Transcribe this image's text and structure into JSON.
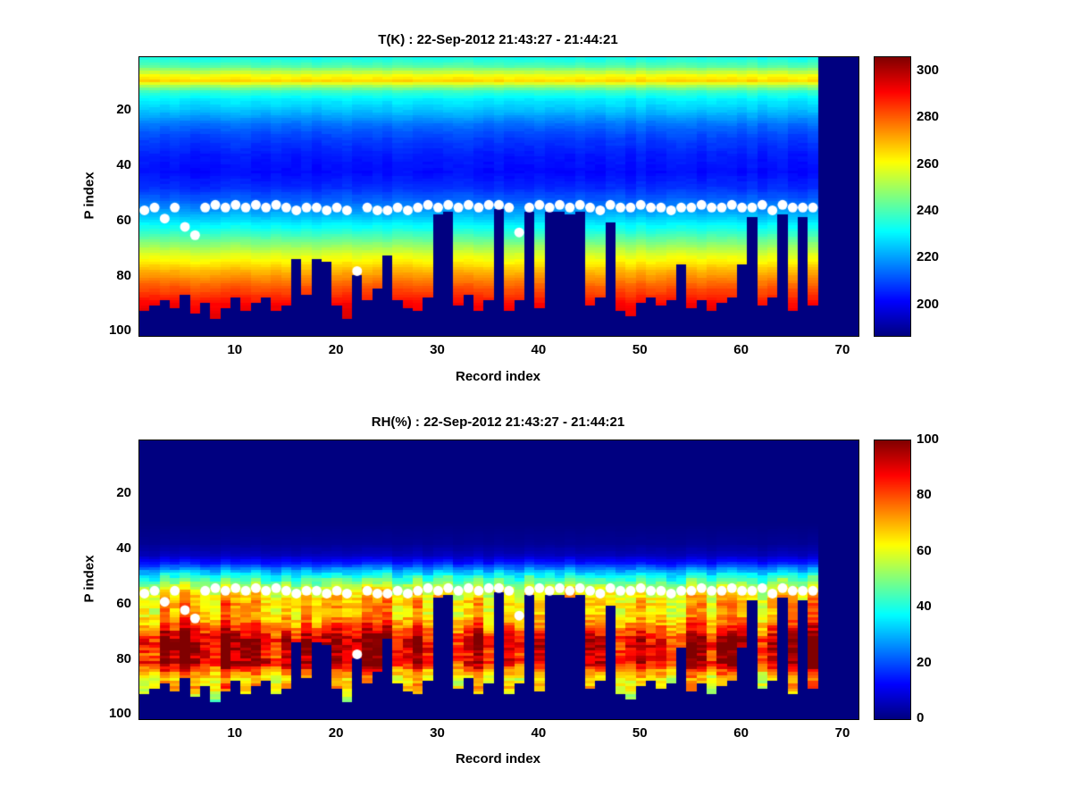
{
  "figure": {
    "background": "#ffffff",
    "marker_color": "#ffffff",
    "background_min_color_name": "dark-navy"
  },
  "chart_data": [
    {
      "type": "heatmap",
      "title": "T(K) : 22-Sep-2012 21:43:27 - 21:44:21",
      "xlabel": "Record index",
      "ylabel": "P index",
      "xlim": [
        0.5,
        71.5
      ],
      "ylim": [
        0.5,
        101.5
      ],
      "y_inverted": true,
      "xticks": [
        10,
        20,
        30,
        40,
        50,
        60,
        70
      ],
      "yticks": [
        20,
        40,
        60,
        80,
        100
      ],
      "colormap": "jet",
      "texture": "additive",
      "n_records": 71,
      "n_data_records": 67,
      "colorbar": {
        "min": 187,
        "max": 306,
        "ticks": [
          200,
          220,
          240,
          260,
          280,
          300
        ]
      },
      "value_profile": {
        "p": [
          1,
          4,
          7,
          9,
          11,
          13,
          16,
          20,
          25,
          30,
          36,
          42,
          48,
          54,
          60,
          66,
          72,
          78,
          84,
          90,
          96,
          101
        ],
        "value": [
          234,
          242,
          260,
          266,
          250,
          238,
          230,
          224,
          215,
          209,
          205,
          203,
          207,
          216,
          228,
          242,
          257,
          270,
          281,
          291,
          296,
          298
        ]
      },
      "surface_cutoff_p": [
        92,
        90,
        88,
        91,
        86,
        93,
        89,
        95,
        91,
        87,
        92,
        89,
        87,
        92,
        90,
        73,
        86,
        73,
        74,
        90,
        95,
        79,
        88,
        84,
        72,
        88,
        91,
        92,
        87,
        57,
        56,
        90,
        86,
        92,
        88,
        55,
        92,
        88,
        56,
        91,
        56,
        56,
        57,
        56,
        90,
        87,
        60,
        92,
        94,
        89,
        87,
        90,
        88,
        75,
        91,
        88,
        92,
        89,
        87,
        75,
        58,
        90,
        87,
        57,
        92,
        58,
        90,
        0,
        0,
        0,
        0
      ],
      "markers": {
        "color": "#ffffff",
        "p": [
          56,
          55,
          59,
          55,
          62,
          65,
          55,
          54,
          55,
          54,
          55,
          54,
          55,
          54,
          55,
          56,
          55,
          55,
          56,
          55,
          56,
          78,
          55,
          56,
          56,
          55,
          56,
          55,
          54,
          55,
          54,
          55,
          54,
          55,
          54,
          54,
          55,
          64,
          55,
          54,
          55,
          54,
          55,
          54,
          55,
          56,
          54,
          55,
          55,
          54,
          55,
          55,
          56,
          55,
          55,
          54,
          55,
          55,
          54,
          55,
          55,
          54,
          56,
          54,
          55,
          55,
          55
        ]
      }
    },
    {
      "type": "heatmap",
      "title": "RH(%) : 22-Sep-2012 21:43:27 - 21:44:21",
      "xlabel": "Record index",
      "ylabel": "P index",
      "xlim": [
        0.5,
        71.5
      ],
      "ylim": [
        0.5,
        101.5
      ],
      "y_inverted": true,
      "xticks": [
        10,
        20,
        30,
        40,
        50,
        60,
        70
      ],
      "yticks": [
        20,
        40,
        60,
        80,
        100
      ],
      "colormap": "jet",
      "texture": "multiplicative",
      "n_records": 71,
      "n_data_records": 67,
      "colorbar": {
        "min": 0,
        "max": 100,
        "ticks": [
          0,
          20,
          40,
          60,
          80,
          100
        ]
      },
      "value_profile": {
        "p": [
          1,
          30,
          38,
          42,
          45,
          48,
          51,
          54,
          57,
          60,
          63,
          66,
          69,
          72,
          75,
          78,
          81,
          84,
          87,
          90,
          93,
          97,
          101
        ],
        "value": [
          0,
          0,
          2,
          6,
          15,
          30,
          45,
          58,
          65,
          70,
          68,
          74,
          82,
          92,
          96,
          90,
          95,
          78,
          65,
          70,
          58,
          42,
          25
        ]
      },
      "surface_cutoff_p": [
        92,
        90,
        88,
        91,
        86,
        93,
        89,
        95,
        91,
        87,
        92,
        89,
        87,
        92,
        90,
        73,
        86,
        73,
        74,
        90,
        95,
        79,
        88,
        84,
        72,
        88,
        91,
        92,
        87,
        57,
        56,
        90,
        86,
        92,
        88,
        55,
        92,
        88,
        56,
        91,
        56,
        56,
        57,
        56,
        90,
        87,
        60,
        92,
        94,
        89,
        87,
        90,
        88,
        75,
        91,
        88,
        92,
        89,
        87,
        75,
        58,
        90,
        87,
        57,
        92,
        58,
        90,
        0,
        0,
        0,
        0
      ],
      "markers": {
        "color": "#ffffff",
        "p": [
          56,
          55,
          59,
          55,
          62,
          65,
          55,
          54,
          55,
          54,
          55,
          54,
          55,
          54,
          55,
          56,
          55,
          55,
          56,
          55,
          56,
          78,
          55,
          56,
          56,
          55,
          56,
          55,
          54,
          55,
          54,
          55,
          54,
          55,
          54,
          54,
          55,
          64,
          55,
          54,
          55,
          54,
          55,
          54,
          55,
          56,
          54,
          55,
          55,
          54,
          55,
          55,
          56,
          55,
          55,
          54,
          55,
          55,
          54,
          55,
          55,
          54,
          56,
          54,
          55,
          55,
          55
        ]
      }
    }
  ]
}
